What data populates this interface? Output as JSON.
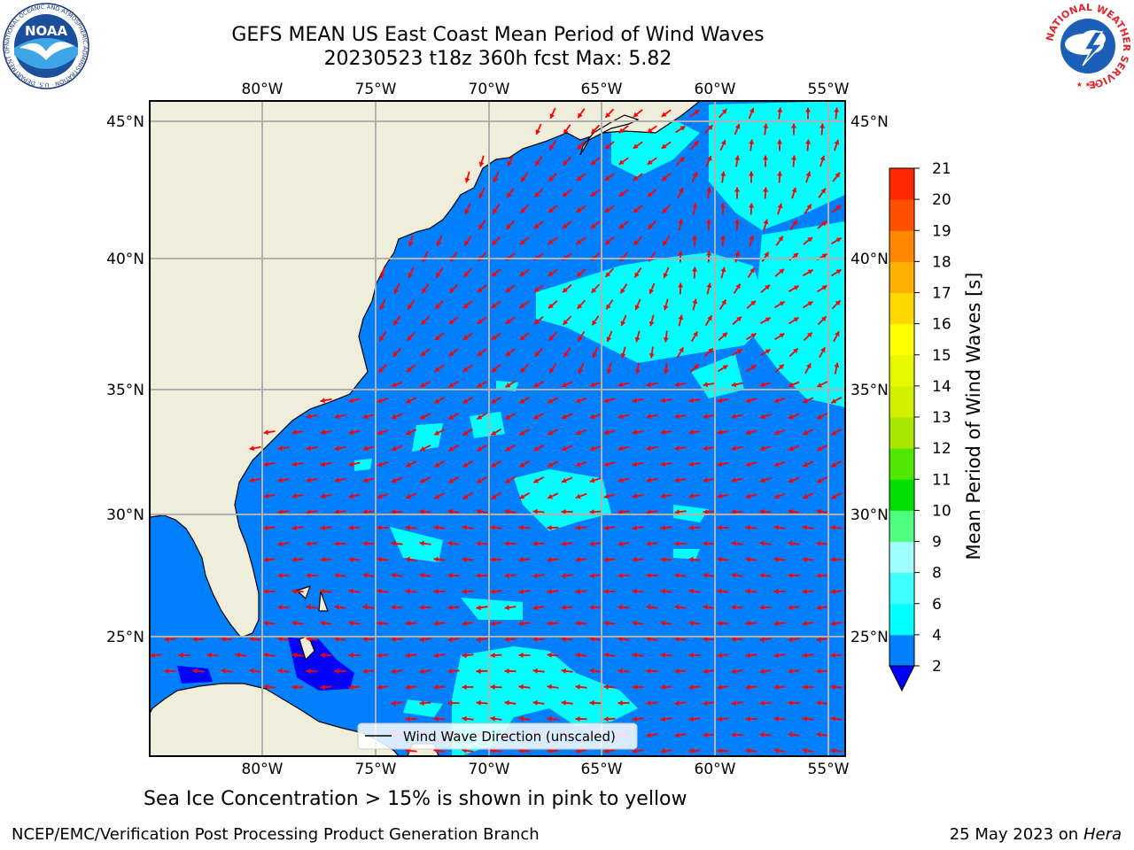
{
  "header": {
    "title_line1": "GEFS MEAN US East Coast Mean Period of Wind Waves",
    "title_line2": "20230523 t18z 360h fcst   Max: 5.82"
  },
  "map": {
    "lon_labels": [
      "80°W",
      "75°W",
      "70°W",
      "65°W",
      "60°W",
      "55°W"
    ],
    "lat_labels": [
      "45°N",
      "40°N",
      "35°N",
      "30°N",
      "25°N"
    ],
    "legend_label": "Wind Wave Direction (unscaled)",
    "ocean_color": "#0080ff",
    "land_color": "#efeedb",
    "arrow_color": "#ff0000"
  },
  "colorbar": {
    "label": "Mean Period of Wind Waves [s]",
    "ticks": [
      "2",
      "4",
      "6",
      "8",
      "9",
      "10",
      "11",
      "12",
      "13",
      "14",
      "15",
      "16",
      "17",
      "18",
      "19",
      "20",
      "21"
    ],
    "colors": [
      "#0080ff",
      "#00ffff",
      "#40ffff",
      "#a0ffff",
      "#50ff80",
      "#00e000",
      "#50e800",
      "#a8e800",
      "#d0f000",
      "#e8f800",
      "#ffff00",
      "#ffd800",
      "#ffb000",
      "#ff8800",
      "#ff5000",
      "#ff2800",
      "#ff0000"
    ],
    "under_color": "#0000ff"
  },
  "footer": {
    "sea_ice_note": "Sea Ice Concentration > 15% is shown in pink to yellow",
    "org": "NCEP/EMC/Verification Post Processing Product Generation Branch",
    "date": "25 May 2023 on",
    "host": "Hera"
  },
  "logos": {
    "noaa": "NOAA",
    "noaa_ring": "NATIONAL OCEANIC AND ATMOSPHERIC ADMINISTRATION · U.S. DEPARTMENT OF COMMERCE",
    "nws_ring": "NATIONAL WEATHER SERVICE"
  }
}
